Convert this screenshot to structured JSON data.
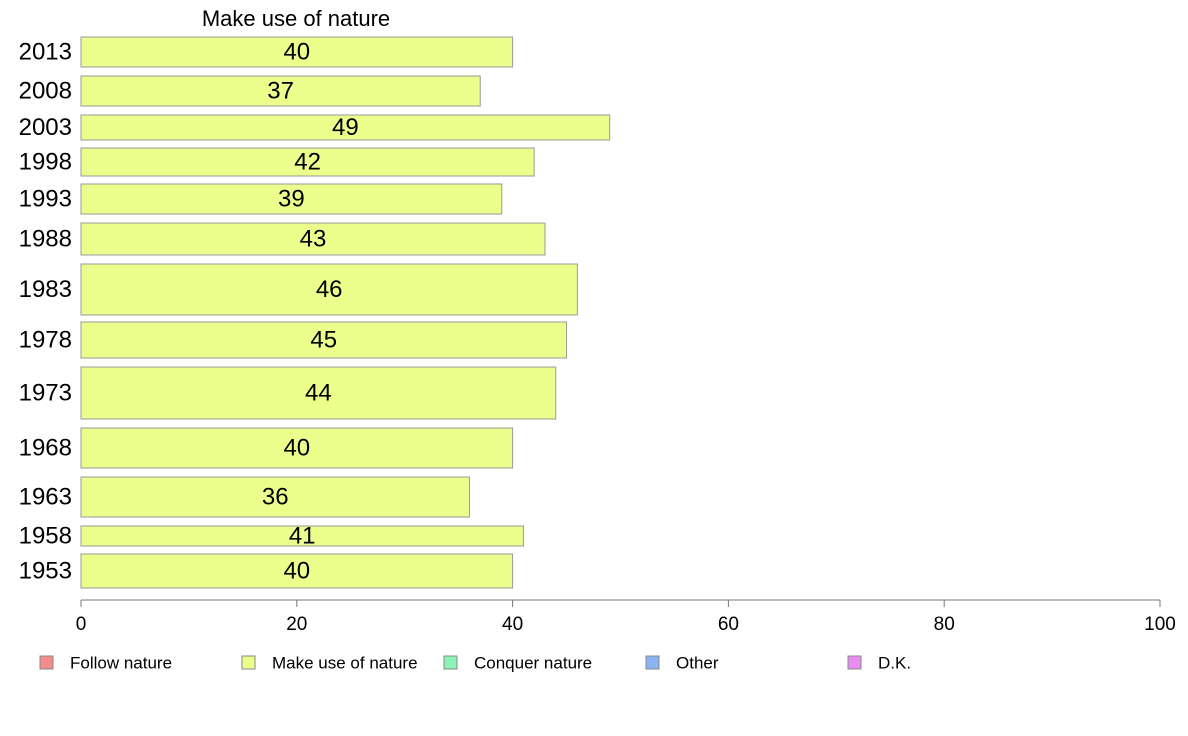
{
  "chart_data": {
    "type": "bar",
    "orientation": "horizontal",
    "title": "Make use of nature",
    "categories": [
      "2013",
      "2008",
      "2003",
      "1998",
      "1993",
      "1988",
      "1983",
      "1978",
      "1973",
      "1968",
      "1963",
      "1958",
      "1953"
    ],
    "series": [
      {
        "name": "Make use of nature",
        "values": [
          40,
          37,
          49,
          42,
          39,
          43,
          46,
          45,
          44,
          40,
          36,
          41,
          40
        ]
      }
    ],
    "xlim": [
      0,
      100
    ],
    "xticks": [
      0,
      20,
      40,
      60,
      80,
      100
    ],
    "grid": false,
    "legend_position": "bottom",
    "legend": [
      {
        "label": "Follow nature",
        "color": "#f48c8c"
      },
      {
        "label": "Make use of nature",
        "color": "#ecff8c"
      },
      {
        "label": "Conquer nature",
        "color": "#8cf4b4"
      },
      {
        "label": "Other",
        "color": "#8cb4f4"
      },
      {
        "label": "D.K.",
        "color": "#e88cf4"
      }
    ],
    "bar_color": "#ecff8c",
    "bar_stroke": "#999999"
  }
}
